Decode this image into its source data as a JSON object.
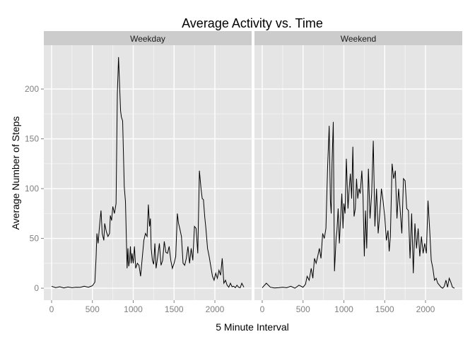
{
  "chart_data": {
    "type": "line",
    "title": "Average Activity vs. Time",
    "xlabel": "5 Minute Interval",
    "ylabel": "Average Number of Steps",
    "xlim": [
      -95,
      2450
    ],
    "ylim": [
      -12,
      244
    ],
    "x_ticks": [
      0,
      500,
      1000,
      1500,
      2000
    ],
    "y_ticks": [
      0,
      50,
      100,
      150,
      200
    ],
    "grid": true,
    "facets": [
      "Weekday",
      "Weekend"
    ],
    "series": [
      {
        "facet": "Weekday",
        "x": [
          0,
          50,
          100,
          150,
          200,
          250,
          300,
          350,
          400,
          450,
          500,
          530,
          545,
          555,
          570,
          590,
          605,
          620,
          640,
          650,
          670,
          690,
          710,
          720,
          735,
          750,
          770,
          790,
          805,
          820,
          835,
          845,
          855,
          870,
          890,
          905,
          915,
          925,
          935,
          945,
          955,
          965,
          975,
          985,
          1000,
          1015,
          1030,
          1050,
          1070,
          1090,
          1110,
          1130,
          1150,
          1170,
          1185,
          1200,
          1210,
          1220,
          1235,
          1250,
          1265,
          1280,
          1300,
          1320,
          1340,
          1360,
          1380,
          1400,
          1420,
          1440,
          1460,
          1480,
          1500,
          1520,
          1540,
          1555,
          1570,
          1590,
          1610,
          1630,
          1650,
          1670,
          1690,
          1710,
          1730,
          1750,
          1770,
          1790,
          1810,
          1830,
          1845,
          1860,
          1875,
          1890,
          1910,
          1930,
          1950,
          1970,
          1990,
          2010,
          2030,
          2050,
          2070,
          2090,
          2110,
          2130,
          2150,
          2170,
          2190,
          2210,
          2230,
          2250,
          2270,
          2290,
          2310,
          2330,
          2355
        ],
        "values": [
          2,
          0.5,
          1.5,
          0.3,
          1.2,
          0.5,
          1,
          0.8,
          2,
          1,
          2.5,
          6,
          30,
          55,
          45,
          65,
          78,
          55,
          48,
          65,
          57,
          52,
          55,
          73,
          68,
          82,
          75,
          85,
          195,
          232,
          200,
          178,
          172,
          168,
          102,
          87,
          52,
          20,
          40,
          22,
          28,
          42,
          25,
          35,
          25,
          42,
          20,
          25,
          23,
          12,
          30,
          48,
          55,
          52,
          84,
          62,
          70,
          40,
          28,
          24,
          45,
          20,
          32,
          45,
          23,
          28,
          47,
          36,
          35,
          42,
          28,
          20,
          25,
          32,
          75,
          65,
          60,
          52,
          25,
          23,
          30,
          42,
          25,
          40,
          28,
          62,
          60,
          35,
          118,
          100,
          90,
          89,
          72,
          60,
          40,
          32,
          22,
          12,
          8,
          15,
          10,
          18,
          13,
          30,
          5,
          8,
          3,
          1,
          5,
          1.5,
          2,
          0.5,
          3,
          1,
          0.5,
          5,
          1
        ],
        "color": "#000000"
      },
      {
        "facet": "Weekend",
        "x": [
          0,
          50,
          100,
          150,
          200,
          250,
          300,
          350,
          400,
          450,
          500,
          530,
          550,
          575,
          600,
          620,
          640,
          660,
          680,
          700,
          720,
          740,
          760,
          780,
          800,
          820,
          835,
          845,
          855,
          870,
          885,
          905,
          915,
          930,
          945,
          960,
          975,
          990,
          1000,
          1015,
          1030,
          1050,
          1065,
          1080,
          1095,
          1110,
          1125,
          1140,
          1155,
          1170,
          1185,
          1200,
          1220,
          1235,
          1250,
          1265,
          1280,
          1300,
          1320,
          1340,
          1360,
          1380,
          1400,
          1420,
          1440,
          1460,
          1480,
          1500,
          1520,
          1540,
          1555,
          1570,
          1590,
          1610,
          1630,
          1650,
          1670,
          1690,
          1710,
          1730,
          1750,
          1770,
          1790,
          1810,
          1830,
          1850,
          1870,
          1890,
          1910,
          1930,
          1950,
          1970,
          1990,
          2010,
          2030,
          2050,
          2070,
          2090,
          2110,
          2130,
          2150,
          2170,
          2190,
          2210,
          2230,
          2250,
          2270,
          2290,
          2310,
          2330,
          2355
        ],
        "values": [
          0.5,
          5,
          1,
          0.3,
          0.5,
          1,
          0.5,
          2,
          0,
          3,
          1,
          4,
          12,
          8,
          20,
          10,
          30,
          25,
          32,
          40,
          30,
          55,
          50,
          60,
          120,
          163,
          88,
          75,
          125,
          167,
          17,
          50,
          58,
          80,
          45,
          70,
          95,
          60,
          85,
          75,
          130,
          80,
          100,
          115,
          90,
          142,
          72,
          80,
          110,
          90,
          100,
          95,
          118,
          92,
          32,
          78,
          40,
          120,
          70,
          95,
          148,
          62,
          100,
          55,
          75,
          100,
          88,
          72,
          48,
          58,
          37,
          52,
          125,
          110,
          118,
          70,
          100,
          78,
          55,
          110,
          108,
          80,
          78,
          30,
          75,
          15,
          65,
          40,
          60,
          32,
          52,
          35,
          45,
          35,
          88,
          60,
          28,
          20,
          8,
          10,
          5,
          3,
          1,
          0,
          2,
          8,
          1,
          10,
          6,
          1,
          0
        ],
        "color": "#000000"
      }
    ]
  },
  "colors": {
    "panel_background": "#e5e5e5",
    "strip_background": "#cccccc",
    "grid_major": "#ffffff",
    "grid_minor": "#f2f2f2",
    "line": "#000000"
  }
}
